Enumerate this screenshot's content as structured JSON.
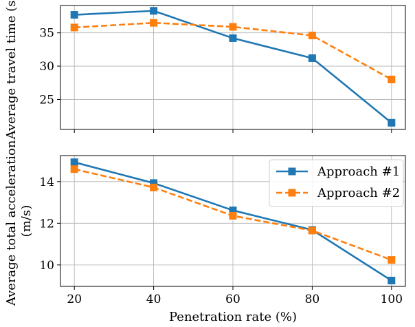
{
  "chart_data": [
    {
      "type": "line",
      "title": "",
      "xlabel": "",
      "ylabel": "Average travel time (s)",
      "x": [
        20,
        40,
        60,
        80,
        100
      ],
      "xlim": [
        16.5,
        103.5
      ],
      "ylim": [
        20.5,
        39.1
      ],
      "xticks": [
        20,
        40,
        60,
        80,
        100
      ],
      "yticks": [
        25,
        30,
        35
      ],
      "grid": true,
      "series": [
        {
          "name": "Approach #1",
          "color": "#1f77b4",
          "style": "solid",
          "marker": "square",
          "values": [
            37.7,
            38.3,
            34.2,
            31.2,
            21.5
          ]
        },
        {
          "name": "Approach #2",
          "color": "#ff7f0e",
          "style": "dashed",
          "marker": "square",
          "values": [
            35.8,
            36.5,
            35.9,
            34.6,
            28.0
          ]
        }
      ]
    },
    {
      "type": "line",
      "title": "",
      "xlabel": "Penetration rate (%)",
      "ylabel": "Average total acceleration (m/s)",
      "ylabel_lines": [
        "Average total acceleration",
        "(m/s)"
      ],
      "x": [
        20,
        40,
        60,
        80,
        100
      ],
      "xlim": [
        16.5,
        103.5
      ],
      "ylim": [
        8.97,
        15.25
      ],
      "xticks": [
        20,
        40,
        60,
        80,
        100
      ],
      "yticks": [
        10,
        12,
        14
      ],
      "grid": true,
      "legend": "upper right",
      "series": [
        {
          "name": "Approach #1",
          "color": "#1f77b4",
          "style": "solid",
          "marker": "square",
          "values": [
            14.93,
            13.93,
            12.62,
            11.68,
            9.25
          ]
        },
        {
          "name": "Approach #2",
          "color": "#ff7f0e",
          "style": "dashed",
          "marker": "square",
          "values": [
            14.6,
            13.72,
            12.36,
            11.65,
            10.24
          ]
        }
      ]
    }
  ]
}
